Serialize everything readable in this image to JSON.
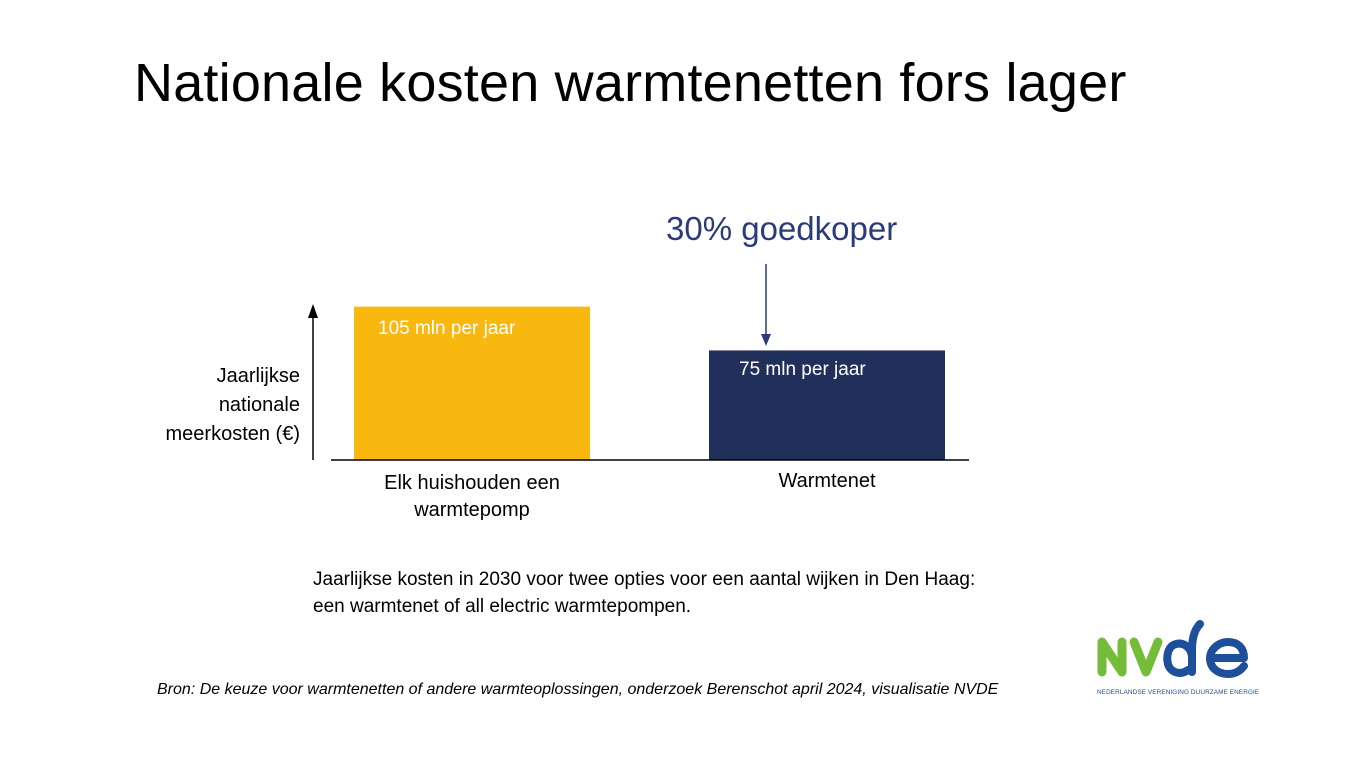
{
  "title": "Nationale kosten warmtenetten fors lager",
  "chart_data": {
    "type": "bar",
    "categories": [
      "Elk huishouden een warmtepomp",
      "Warmtenet"
    ],
    "values": [
      105,
      75
    ],
    "value_labels": [
      "105 mln per jaar",
      "75 mln per jaar"
    ],
    "colors": [
      "#F8B80F",
      "#21305B"
    ],
    "ylabel": "Jaarlijkse nationale meerkosten (€)",
    "ylim": [
      0,
      115
    ],
    "grid": false,
    "annotation": "30% goedkoper",
    "annotation_color": "#2B3A7A"
  },
  "categories_display": {
    "cat1_line1": "Elk huishouden een",
    "cat1_line2": "warmtepomp",
    "cat2": "Warmtenet"
  },
  "ylabel_lines": [
    "Jaarlijkse",
    "nationale",
    "meerkosten (€)"
  ],
  "caption_lines": [
    "Jaarlijkse kosten in 2030 voor twee opties voor een aantal wijken in Den Haag:",
    "een warmtenet of all electric warmtepompen."
  ],
  "source": "Bron: De keuze voor warmtenetten of andere warmteoplossingen, onderzoek Berenschot april 2024, visualisatie NVDE",
  "logo": {
    "letters_green": "NV",
    "letters_blue": "de",
    "tagline": "NEDERLANDSE VERENIGING DUURZAME ENERGIE",
    "green": "#76BC3B",
    "blue": "#1D4F9A"
  }
}
